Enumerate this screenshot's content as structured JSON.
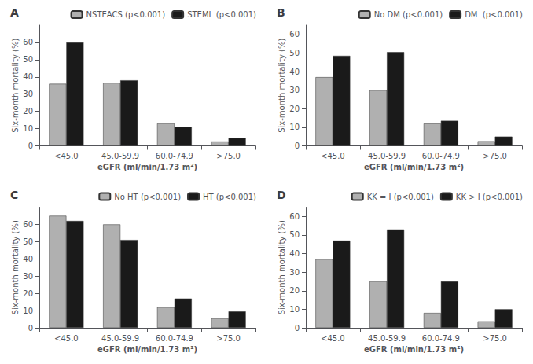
{
  "chart_data": [
    {
      "type": "bar",
      "title": "A",
      "categories": [
        "<45.0",
        "45.0-59.9",
        "60.0-74.9",
        ">75.0"
      ],
      "series": [
        {
          "name": "NSTEACS (p<0.001)",
          "color": "#b0b0b0",
          "values": [
            36,
            36.5,
            13,
            2.5
          ]
        },
        {
          "name": "STEMI  (p<0.001)",
          "color": "#1a1a1a",
          "values": [
            60,
            38,
            11,
            4.5
          ]
        }
      ],
      "xlabel": "eGFR (ml/min/1.73 m²)",
      "ylabel": "Six-month mortality (%)",
      "ylim": [
        0,
        70
      ],
      "yticks": [
        0,
        10,
        20,
        30,
        40,
        50,
        60
      ],
      "grid": false,
      "legend": "upper right"
    },
    {
      "type": "bar",
      "title": "B",
      "categories": [
        "<45.0",
        "45.0-59.9",
        "60.0-74.9",
        ">75.0"
      ],
      "series": [
        {
          "name": "No DM (p<0.001)",
          "color": "#b0b0b0",
          "values": [
            37,
            30,
            12,
            2.5
          ]
        },
        {
          "name": "DM  (p<0.001)",
          "color": "#1a1a1a",
          "values": [
            48.5,
            50.5,
            13.5,
            5
          ]
        }
      ],
      "xlabel": "eGFR (ml/min/1.73 m²)",
      "ylabel": "Six-month mortality (%)",
      "ylim": [
        0,
        65
      ],
      "yticks": [
        0,
        10,
        20,
        30,
        40,
        50,
        60
      ],
      "grid": false,
      "legend": "upper right"
    },
    {
      "type": "bar",
      "title": "C",
      "categories": [
        "<45.0",
        "45.0-59.9",
        "60.0-74.9",
        ">75.0"
      ],
      "series": [
        {
          "name": "No HT (p<0.001)",
          "color": "#b0b0b0",
          "values": [
            65,
            60,
            12,
            5.5
          ]
        },
        {
          "name": "HT (p<0.001)",
          "color": "#1a1a1a",
          "values": [
            62,
            51,
            17,
            9.5
          ]
        }
      ],
      "xlabel": "eGFR (ml/min/1.73 m²)",
      "ylabel": "Six-month mortality (%)",
      "ylim": [
        0,
        70
      ],
      "yticks": [
        0,
        10,
        20,
        30,
        40,
        50,
        60
      ],
      "grid": false,
      "legend": "upper right"
    },
    {
      "type": "bar",
      "title": "D",
      "categories": [
        "<45.0",
        "45.0-59.9",
        "60.0-74.9",
        ">75.0"
      ],
      "series": [
        {
          "name": "KK = I (p<0.001)",
          "color": "#b0b0b0",
          "values": [
            37,
            25,
            8,
            3.5
          ]
        },
        {
          "name": "KK > I (p<0.001)",
          "color": "#1a1a1a",
          "values": [
            47,
            53,
            25,
            10
          ]
        }
      ],
      "xlabel": "eGFR (ml/min/1.73 m²)",
      "ylabel": "Six-month mortality (%)",
      "ylim": [
        0,
        65
      ],
      "yticks": [
        0,
        10,
        20,
        30,
        40,
        50,
        60
      ],
      "grid": false,
      "legend": "upper right"
    }
  ]
}
